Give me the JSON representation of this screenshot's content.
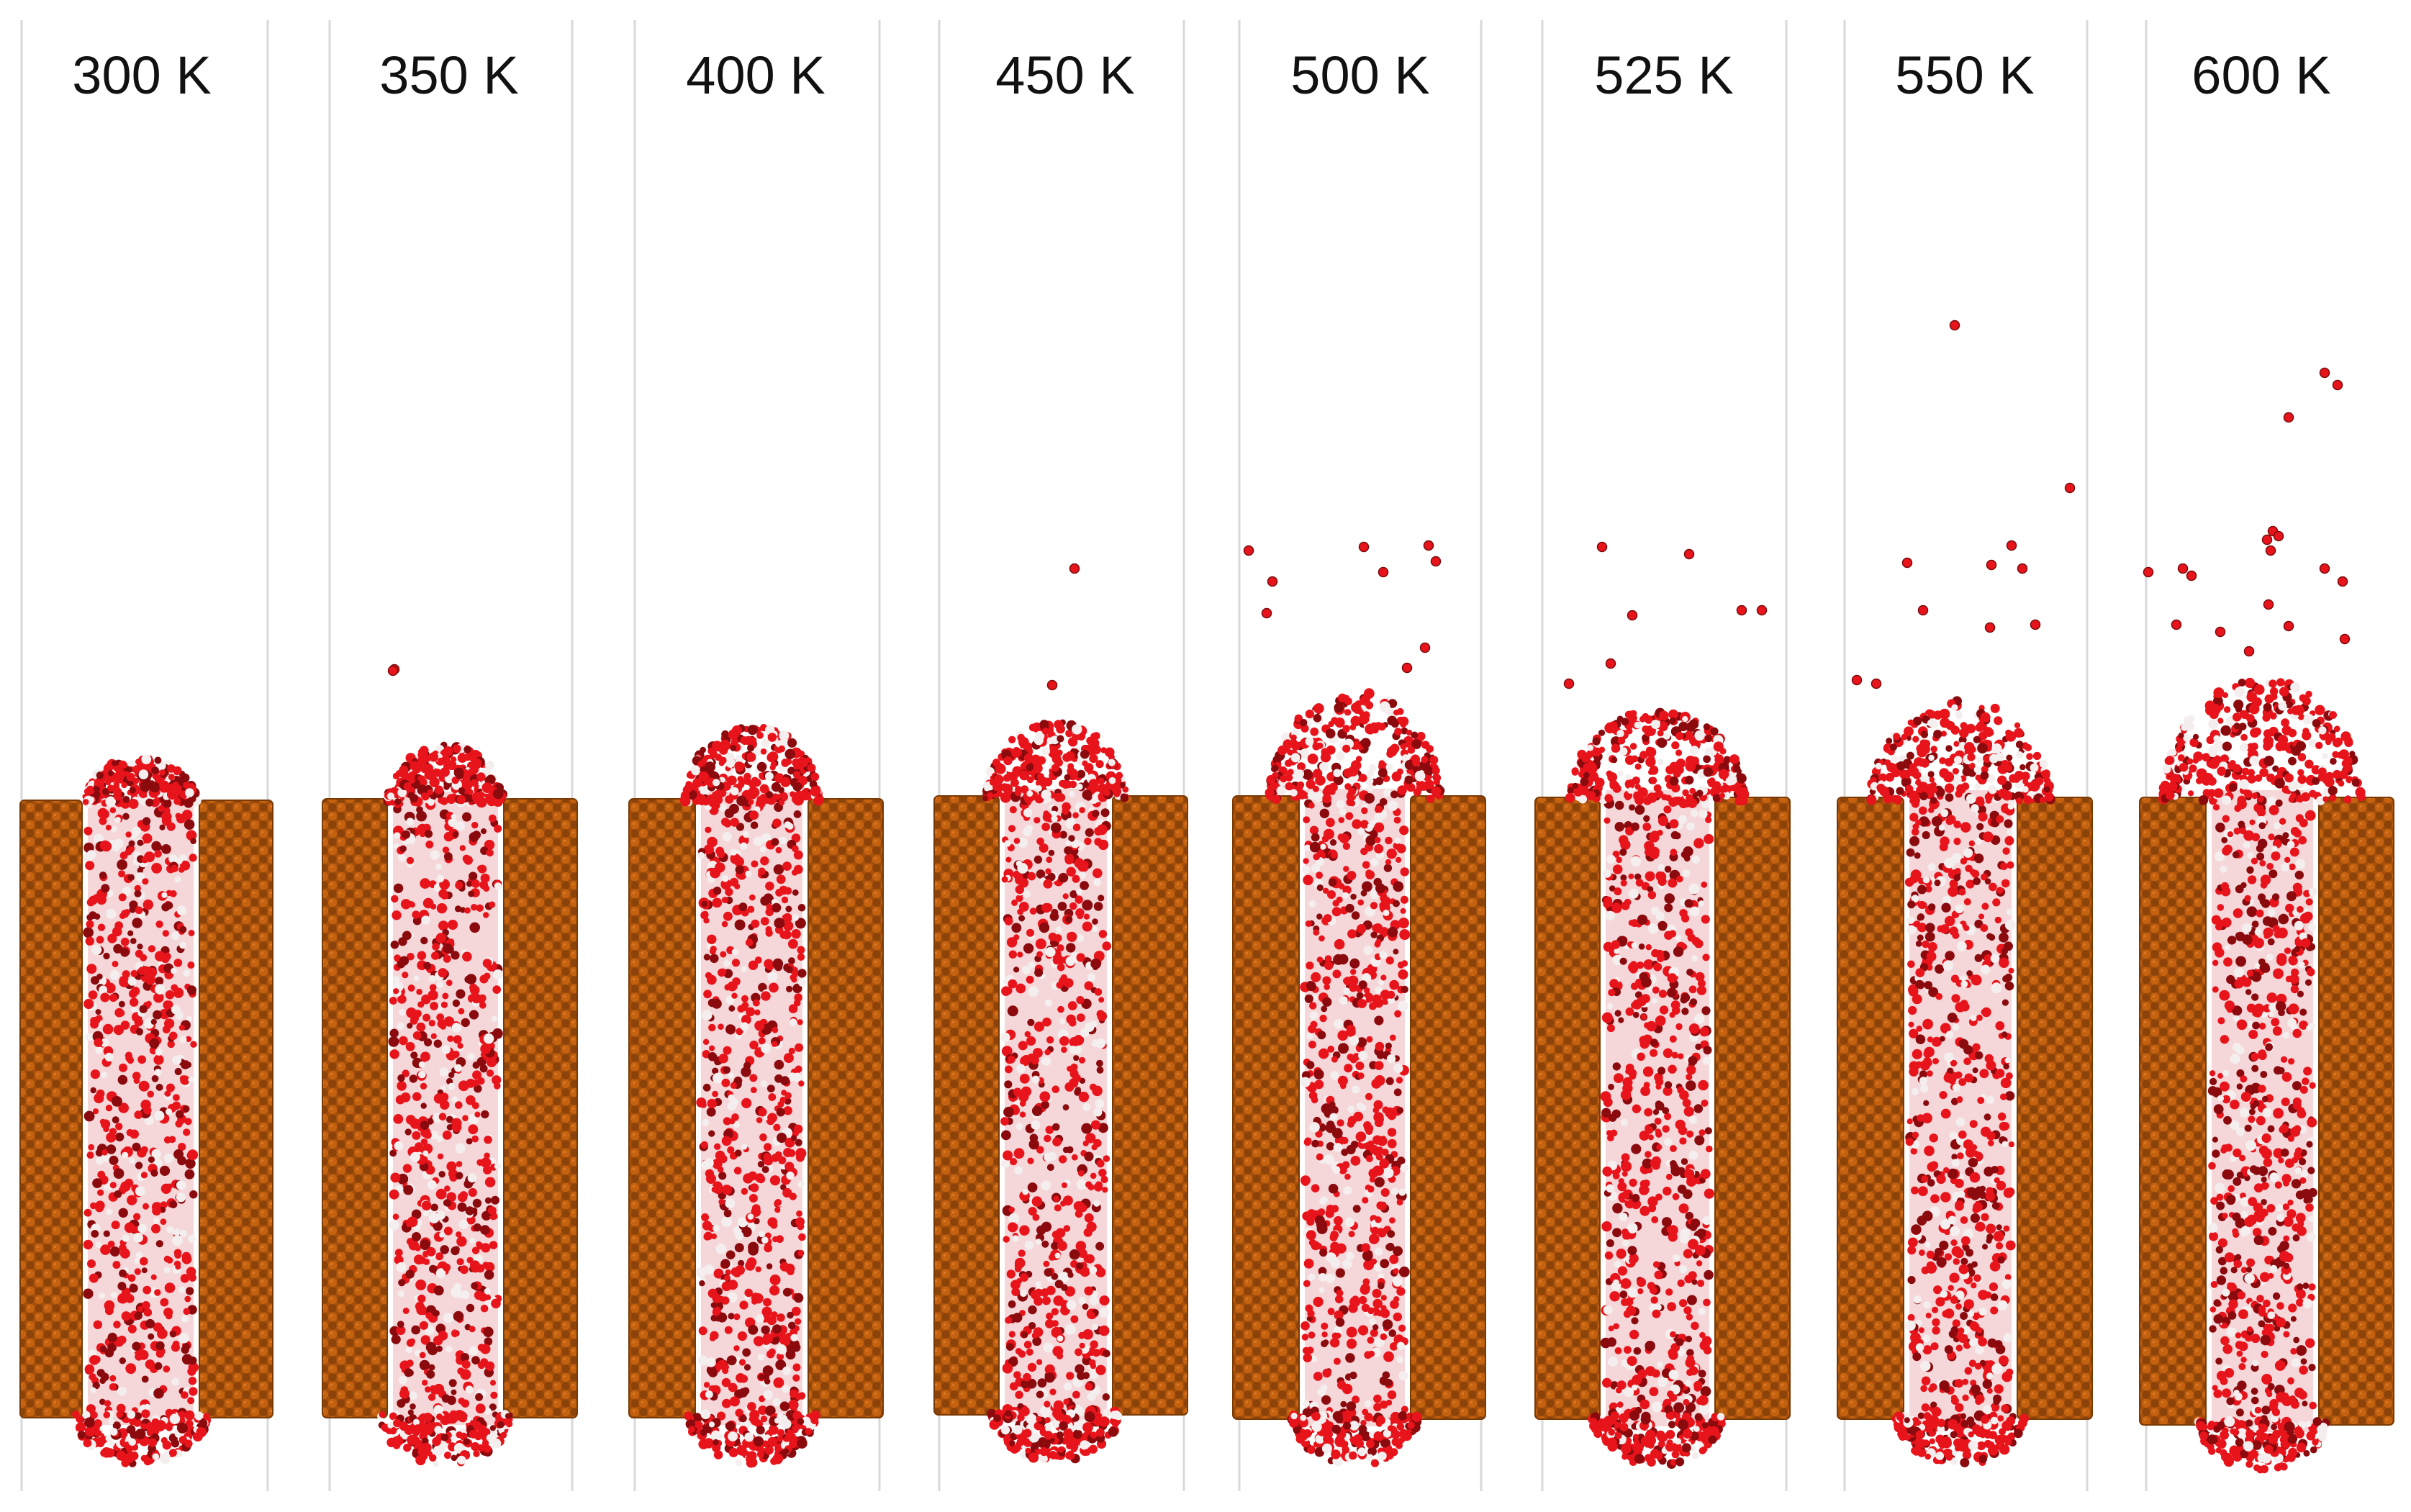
{
  "figure": {
    "panels": [
      {
        "label": "300 K"
      },
      {
        "label": "350 K"
      },
      {
        "label": "400 K"
      },
      {
        "label": "450 K"
      },
      {
        "label": "500 K"
      },
      {
        "label": "525 K"
      },
      {
        "label": "550 K"
      },
      {
        "label": "600 K"
      }
    ],
    "colors": {
      "background": "#ffffff",
      "divider": "#d9d9d9",
      "wall": "#b85a0e",
      "wall_dark": "#6e3608",
      "molecule_red": "#e8141b",
      "molecule_dark": "#8a0a0e",
      "molecule_white": "#f4eeee"
    }
  }
}
